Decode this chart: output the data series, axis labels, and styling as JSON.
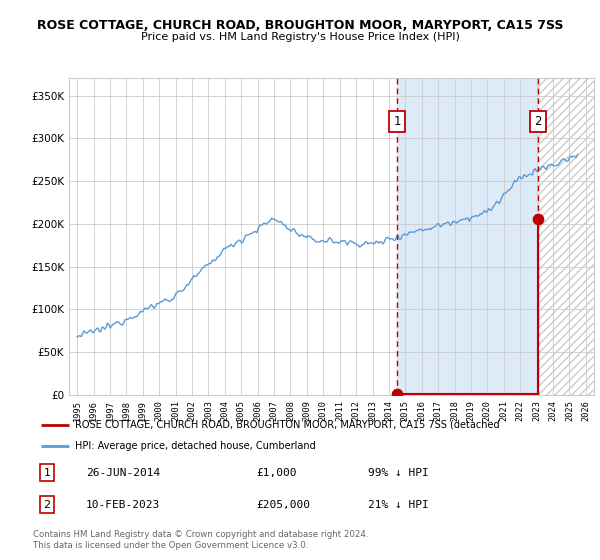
{
  "title": "ROSE COTTAGE, CHURCH ROAD, BROUGHTON MOOR, MARYPORT, CA15 7SS",
  "subtitle": "Price paid vs. HM Land Registry's House Price Index (HPI)",
  "hpi_legend": "HPI: Average price, detached house, Cumberland",
  "price_legend": "ROSE COTTAGE, CHURCH ROAD, BROUGHTON MOOR, MARYPORT, CA15 7SS (detached",
  "footer1": "Contains HM Land Registry data © Crown copyright and database right 2024.",
  "footer2": "This data is licensed under the Open Government Licence v3.0.",
  "annotation1_date": "26-JUN-2014",
  "annotation1_price": "£1,000",
  "annotation1_hpi": "99% ↓ HPI",
  "annotation2_date": "10-FEB-2023",
  "annotation2_price": "£205,000",
  "annotation2_hpi": "21% ↓ HPI",
  "sale1_x": 2014.5,
  "sale1_y": 1000,
  "sale2_x": 2023.1,
  "sale2_y": 205000,
  "vline1_x": 2014.5,
  "vline2_x": 2023.1,
  "hpi_line_color": "#5b9bd5",
  "hpi_fill_color": "#ddeaf7",
  "price_color": "#c00000",
  "sale_dot_color": "#c00000",
  "vline_color": "#c00000",
  "background_color": "#ffffff",
  "grid_color": "#cccccc",
  "ylim": [
    0,
    370000
  ],
  "xlim": [
    1994.5,
    2026.5
  ],
  "yticks": [
    0,
    50000,
    100000,
    150000,
    200000,
    250000,
    300000,
    350000
  ],
  "ytick_labels": [
    "£0",
    "£50K",
    "£100K",
    "£150K",
    "£200K",
    "£250K",
    "£300K",
    "£350K"
  ],
  "xticks": [
    1995,
    1996,
    1997,
    1998,
    1999,
    2000,
    2001,
    2002,
    2003,
    2004,
    2005,
    2006,
    2007,
    2008,
    2009,
    2010,
    2011,
    2012,
    2013,
    2014,
    2015,
    2016,
    2017,
    2018,
    2019,
    2020,
    2021,
    2022,
    2023,
    2024,
    2025,
    2026
  ]
}
